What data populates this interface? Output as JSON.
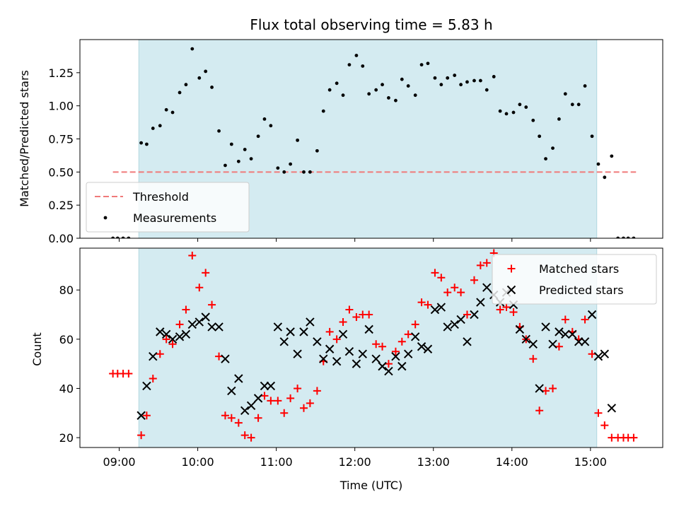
{
  "chart_data": [
    {
      "type": "scatter",
      "title": "Flux total observing time = 5.83 h",
      "xlabel": "",
      "ylabel": "Matched/Predicted stars",
      "xlim": [
        8.5,
        15.92
      ],
      "ylim": [
        0.0,
        1.5
      ],
      "yticks": [
        0.0,
        0.25,
        0.5,
        0.75,
        1.0,
        1.25
      ],
      "ytick_labels": [
        "0.00",
        "0.25",
        "0.50",
        "0.75",
        "1.00",
        "1.25"
      ],
      "shaded_interval": [
        9.25,
        15.08
      ],
      "shade_color": "#d4ebf1",
      "threshold": {
        "name": "Threshold",
        "value": 0.5,
        "x_range": [
          8.92,
          15.58
        ],
        "color": "#f07a7a"
      },
      "legend": {
        "placement": "lower-left"
      },
      "series": [
        {
          "name": "Measurements",
          "marker": "dot",
          "color": "#000000",
          "x": [
            8.92,
            8.98,
            9.05,
            9.12,
            9.28,
            9.35,
            9.43,
            9.52,
            9.6,
            9.68,
            9.77,
            9.85,
            9.93,
            10.02,
            10.1,
            10.18,
            10.27,
            10.35,
            10.43,
            10.52,
            10.6,
            10.68,
            10.77,
            10.85,
            10.93,
            11.02,
            11.1,
            11.18,
            11.27,
            11.35,
            11.43,
            11.52,
            11.6,
            11.68,
            11.77,
            11.85,
            11.93,
            12.02,
            12.1,
            12.18,
            12.27,
            12.35,
            12.43,
            12.52,
            12.6,
            12.68,
            12.77,
            12.85,
            12.93,
            13.02,
            13.1,
            13.18,
            13.27,
            13.35,
            13.43,
            13.52,
            13.6,
            13.68,
            13.77,
            13.85,
            13.93,
            14.02,
            14.1,
            14.18,
            14.27,
            14.35,
            14.43,
            14.52,
            14.6,
            14.68,
            14.77,
            14.85,
            14.93,
            15.02,
            15.1,
            15.18,
            15.27,
            15.35,
            15.42,
            15.48,
            15.55
          ],
          "y": [
            0.0,
            0.0,
            0.0,
            0.0,
            0.72,
            0.71,
            0.83,
            0.85,
            0.97,
            0.95,
            1.1,
            1.16,
            1.43,
            1.21,
            1.26,
            1.14,
            0.81,
            0.55,
            0.71,
            0.58,
            0.67,
            0.6,
            0.77,
            0.9,
            0.85,
            0.53,
            0.5,
            0.56,
            0.74,
            0.5,
            0.5,
            0.66,
            0.96,
            1.12,
            1.17,
            1.08,
            1.31,
            1.38,
            1.3,
            1.09,
            1.12,
            1.16,
            1.06,
            1.04,
            1.2,
            1.15,
            1.08,
            1.31,
            1.32,
            1.21,
            1.16,
            1.21,
            1.23,
            1.16,
            1.18,
            1.19,
            1.19,
            1.12,
            1.22,
            0.96,
            0.94,
            0.95,
            1.01,
            0.99,
            0.89,
            0.77,
            0.6,
            0.68,
            0.9,
            1.09,
            1.01,
            1.01,
            1.15,
            0.77,
            0.56,
            0.46,
            0.62,
            0.0,
            0.0,
            0.0,
            0.0
          ]
        }
      ]
    },
    {
      "type": "scatter",
      "xlabel": "Time (UTC)",
      "ylabel": "Count",
      "xlim": [
        8.5,
        15.92
      ],
      "ylim": [
        16.0,
        97.0
      ],
      "xticks": [
        9,
        10,
        11,
        12,
        13,
        14,
        15
      ],
      "xtick_labels": [
        "09:00",
        "10:00",
        "11:00",
        "12:00",
        "13:00",
        "14:00",
        "15:00"
      ],
      "yticks": [
        20,
        40,
        60,
        80
      ],
      "ytick_labels": [
        "20",
        "40",
        "60",
        "80"
      ],
      "shaded_interval": [
        9.25,
        15.08
      ],
      "shade_color": "#d4ebf1",
      "legend": {
        "placement": "top-right"
      },
      "series": [
        {
          "name": "Matched stars",
          "marker": "plus",
          "color": "#ff0000",
          "x": [
            8.92,
            8.98,
            9.05,
            9.12,
            9.28,
            9.35,
            9.43,
            9.52,
            9.6,
            9.68,
            9.77,
            9.85,
            9.93,
            10.02,
            10.1,
            10.18,
            10.27,
            10.35,
            10.43,
            10.52,
            10.6,
            10.68,
            10.77,
            10.85,
            10.93,
            11.02,
            11.1,
            11.18,
            11.27,
            11.35,
            11.43,
            11.52,
            11.6,
            11.68,
            11.77,
            11.85,
            11.93,
            12.02,
            12.1,
            12.18,
            12.27,
            12.35,
            12.43,
            12.52,
            12.6,
            12.68,
            12.77,
            12.85,
            12.93,
            13.02,
            13.1,
            13.18,
            13.27,
            13.35,
            13.43,
            13.52,
            13.6,
            13.68,
            13.77,
            13.85,
            13.93,
            14.02,
            14.1,
            14.18,
            14.27,
            14.35,
            14.43,
            14.52,
            14.6,
            14.68,
            14.77,
            14.85,
            14.93,
            15.02,
            15.1,
            15.18,
            15.27,
            15.35,
            15.42,
            15.48,
            15.55
          ],
          "y": [
            46,
            46,
            46,
            46,
            21,
            29,
            44,
            54,
            60,
            58,
            66,
            72,
            94,
            81,
            87,
            74,
            53,
            29,
            28,
            26,
            21,
            20,
            28,
            37,
            35,
            35,
            30,
            36,
            40,
            32,
            34,
            39,
            51,
            63,
            60,
            67,
            72,
            69,
            70,
            70,
            58,
            57,
            50,
            55,
            59,
            62,
            66,
            75,
            74,
            87,
            85,
            79,
            81,
            79,
            70,
            84,
            90,
            91,
            95,
            72,
            73,
            71,
            65,
            60,
            52,
            31,
            39,
            40,
            57,
            68,
            63,
            60,
            68,
            54,
            30,
            25,
            20,
            20,
            20,
            20,
            20
          ]
        },
        {
          "name": "Predicted stars",
          "marker": "x",
          "color": "#000000",
          "x": [
            9.28,
            9.35,
            9.43,
            9.52,
            9.6,
            9.68,
            9.77,
            9.85,
            9.93,
            10.02,
            10.1,
            10.18,
            10.27,
            10.35,
            10.43,
            10.52,
            10.6,
            10.68,
            10.77,
            10.85,
            10.93,
            11.02,
            11.1,
            11.18,
            11.27,
            11.35,
            11.43,
            11.52,
            11.6,
            11.68,
            11.77,
            11.85,
            11.93,
            12.02,
            12.1,
            12.18,
            12.27,
            12.35,
            12.43,
            12.52,
            12.6,
            12.68,
            12.77,
            12.85,
            12.93,
            13.02,
            13.1,
            13.18,
            13.27,
            13.35,
            13.43,
            13.52,
            13.6,
            13.68,
            13.77,
            13.85,
            13.93,
            14.02,
            14.1,
            14.18,
            14.27,
            14.35,
            14.43,
            14.52,
            14.6,
            14.68,
            14.77,
            14.85,
            14.93,
            15.02,
            15.1,
            15.18,
            15.27
          ],
          "y": [
            29,
            41,
            53,
            63,
            62,
            60,
            61,
            62,
            66,
            67,
            69,
            65,
            65,
            52,
            39,
            44,
            31,
            33,
            36,
            41,
            41,
            65,
            59,
            63,
            54,
            63,
            67,
            59,
            52,
            56,
            51,
            62,
            55,
            50,
            54,
            64,
            52,
            49,
            47,
            53,
            49,
            54,
            61,
            57,
            56,
            72,
            73,
            65,
            66,
            68,
            59,
            70,
            75,
            81,
            78,
            75,
            79,
            74,
            64,
            60,
            58,
            40,
            65,
            58,
            63,
            62,
            62,
            59,
            59,
            70,
            53,
            54,
            32
          ]
        }
      ]
    }
  ]
}
